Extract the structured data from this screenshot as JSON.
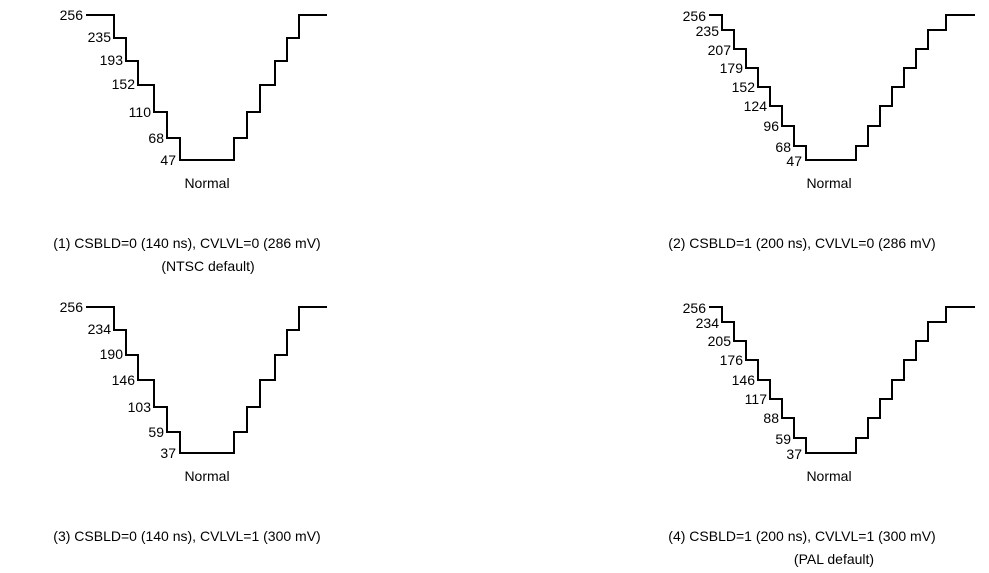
{
  "panels": [
    {
      "levels": [
        "256",
        "235",
        "193",
        "152",
        "110",
        "68",
        "47"
      ],
      "bottom_label": "Normal",
      "caption": "(1) CSBLD=0 (140 ns), CVLVL=0 (286 mV)",
      "note": "(NTSC default)"
    },
    {
      "levels": [
        "256",
        "235",
        "207",
        "179",
        "152",
        "124",
        "96",
        "68",
        "47"
      ],
      "bottom_label": "Normal",
      "caption": "(2) CSBLD=1 (200 ns), CVLVL=0 (286 mV)",
      "note": ""
    },
    {
      "levels": [
        "256",
        "234",
        "190",
        "146",
        "103",
        "59",
        "37"
      ],
      "bottom_label": "Normal",
      "caption": "(3) CSBLD=0 (140 ns), CVLVL=1 (300 mV)",
      "note": ""
    },
    {
      "levels": [
        "256",
        "234",
        "205",
        "176",
        "146",
        "117",
        "88",
        "59",
        "37"
      ],
      "bottom_label": "Normal",
      "caption": "(4) CSBLD=1 (200 ns), CVLVL=1 (300 mV)",
      "note": "(PAL default)"
    }
  ]
}
